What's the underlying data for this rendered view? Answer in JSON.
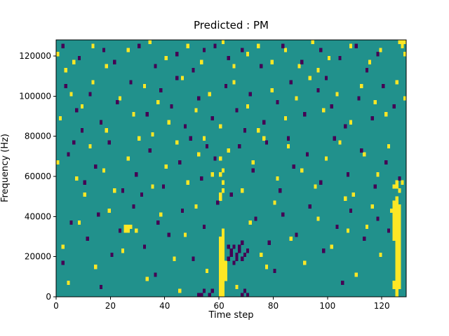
{
  "chart_data": {
    "type": "heatmap",
    "title": "Predicted : PM",
    "xlabel": "Time step",
    "ylabel": "Frequency (Hz)",
    "xlim": [
      0,
      129
    ],
    "ylim": [
      0,
      128000
    ],
    "xticks": [
      0,
      20,
      40,
      60,
      80,
      100,
      120
    ],
    "yticks": [
      0,
      20000,
      40000,
      60000,
      80000,
      100000,
      120000
    ],
    "grid": false,
    "legend": "none",
    "nx": 129,
    "ny": 64,
    "cell_freq_step_hz": 2000,
    "colors": {
      "background": "#21918c",
      "yellow": "#fde725",
      "dark": "#440154",
      "axis": "#000000",
      "figure_bg": "#ffffff"
    },
    "yellow_cells": [
      [
        60,
        0
      ],
      [
        60,
        1
      ],
      [
        60,
        2
      ],
      [
        60,
        3
      ],
      [
        60,
        4
      ],
      [
        60,
        5
      ],
      [
        60,
        6
      ],
      [
        60,
        7
      ],
      [
        60,
        8
      ],
      [
        60,
        9
      ],
      [
        60,
        10
      ],
      [
        60,
        11
      ],
      [
        60,
        12
      ],
      [
        60,
        13
      ],
      [
        60,
        14
      ],
      [
        61,
        0
      ],
      [
        61,
        1
      ],
      [
        61,
        2
      ],
      [
        61,
        3
      ],
      [
        61,
        4
      ],
      [
        61,
        5
      ],
      [
        61,
        6
      ],
      [
        61,
        7
      ],
      [
        61,
        8
      ],
      [
        61,
        9
      ],
      [
        61,
        10
      ],
      [
        61,
        11
      ],
      [
        61,
        12
      ],
      [
        61,
        13
      ],
      [
        61,
        14
      ],
      [
        61,
        15
      ],
      [
        61,
        16
      ],
      [
        62,
        4
      ],
      [
        62,
        5
      ],
      [
        62,
        6
      ],
      [
        62,
        7
      ],
      [
        62,
        8
      ],
      [
        60,
        24
      ],
      [
        60,
        25
      ],
      [
        61,
        26
      ],
      [
        61,
        28
      ],
      [
        60,
        30
      ],
      [
        61,
        31
      ],
      [
        60,
        34
      ],
      [
        124,
        2
      ],
      [
        124,
        3
      ],
      [
        124,
        14
      ],
      [
        124,
        15
      ],
      [
        124,
        16
      ],
      [
        124,
        17
      ],
      [
        124,
        18
      ],
      [
        124,
        19
      ],
      [
        124,
        20
      ],
      [
        124,
        21
      ],
      [
        124,
        22
      ],
      [
        124,
        23
      ],
      [
        124,
        27
      ],
      [
        125,
        0
      ],
      [
        125,
        1
      ],
      [
        125,
        2
      ],
      [
        125,
        3
      ],
      [
        125,
        4
      ],
      [
        125,
        5
      ],
      [
        125,
        6
      ],
      [
        125,
        7
      ],
      [
        125,
        8
      ],
      [
        125,
        9
      ],
      [
        125,
        10
      ],
      [
        125,
        11
      ],
      [
        125,
        12
      ],
      [
        125,
        13
      ],
      [
        125,
        14
      ],
      [
        125,
        15
      ],
      [
        125,
        16
      ],
      [
        125,
        17
      ],
      [
        125,
        18
      ],
      [
        125,
        19
      ],
      [
        125,
        20
      ],
      [
        125,
        21
      ],
      [
        125,
        22
      ],
      [
        125,
        23
      ],
      [
        125,
        24
      ],
      [
        125,
        27
      ],
      [
        125,
        28
      ],
      [
        126,
        2
      ],
      [
        126,
        3
      ],
      [
        126,
        4
      ],
      [
        126,
        5
      ],
      [
        126,
        6
      ],
      [
        126,
        7
      ],
      [
        126,
        8
      ],
      [
        126,
        9
      ],
      [
        126,
        10
      ],
      [
        126,
        11
      ],
      [
        126,
        12
      ],
      [
        126,
        13
      ],
      [
        126,
        14
      ],
      [
        126,
        15
      ],
      [
        126,
        16
      ],
      [
        126,
        17
      ],
      [
        126,
        18
      ],
      [
        126,
        19
      ],
      [
        126,
        20
      ],
      [
        126,
        21
      ],
      [
        126,
        22
      ],
      [
        126,
        26
      ],
      [
        25,
        16
      ],
      [
        26,
        16
      ],
      [
        26,
        17
      ],
      [
        27,
        17
      ],
      [
        25,
        17
      ],
      [
        0,
        60
      ],
      [
        3,
        56
      ],
      [
        6,
        58
      ],
      [
        13,
        62
      ],
      [
        18,
        57
      ],
      [
        26,
        61
      ],
      [
        34,
        63
      ],
      [
        40,
        59
      ],
      [
        48,
        62
      ],
      [
        53,
        58
      ],
      [
        61,
        63
      ],
      [
        65,
        57
      ],
      [
        70,
        60
      ],
      [
        74,
        62
      ],
      [
        79,
        58
      ],
      [
        84,
        61
      ],
      [
        89,
        57
      ],
      [
        94,
        63
      ],
      [
        96,
        56
      ],
      [
        100,
        59
      ],
      [
        108,
        62
      ],
      [
        115,
        58
      ],
      [
        119,
        61
      ],
      [
        126,
        63
      ],
      [
        127,
        63
      ],
      [
        128,
        63
      ],
      [
        127,
        62
      ],
      [
        128,
        60
      ],
      [
        1,
        44
      ],
      [
        5,
        50
      ],
      [
        9,
        47
      ],
      [
        13,
        53
      ],
      [
        18,
        41
      ],
      [
        23,
        49
      ],
      [
        28,
        45
      ],
      [
        32,
        52
      ],
      [
        35,
        40
      ],
      [
        37,
        48
      ],
      [
        41,
        43
      ],
      [
        46,
        54
      ],
      [
        51,
        46
      ],
      [
        56,
        50
      ],
      [
        60,
        42
      ],
      [
        65,
        53
      ],
      [
        70,
        47
      ],
      [
        74,
        41
      ],
      [
        79,
        51
      ],
      [
        84,
        44
      ],
      [
        88,
        49
      ],
      [
        93,
        54
      ],
      [
        98,
        46
      ],
      [
        103,
        50
      ],
      [
        108,
        43
      ],
      [
        112,
        52
      ],
      [
        117,
        48
      ],
      [
        121,
        45
      ],
      [
        125,
        53
      ],
      [
        128,
        49
      ],
      [
        0,
        33
      ],
      [
        7,
        29
      ],
      [
        10,
        25
      ],
      [
        12,
        37
      ],
      [
        17,
        31
      ],
      [
        21,
        26
      ],
      [
        26,
        34
      ],
      [
        30,
        39
      ],
      [
        35,
        27
      ],
      [
        40,
        32
      ],
      [
        44,
        38
      ],
      [
        48,
        28
      ],
      [
        52,
        35
      ],
      [
        54,
        39
      ],
      [
        57,
        30
      ],
      [
        63,
        36
      ],
      [
        68,
        26
      ],
      [
        72,
        33
      ],
      [
        76,
        39
      ],
      [
        81,
        29
      ],
      [
        85,
        37
      ],
      [
        90,
        31
      ],
      [
        95,
        27
      ],
      [
        99,
        34
      ],
      [
        104,
        38
      ],
      [
        109,
        25
      ],
      [
        113,
        35
      ],
      [
        118,
        30
      ],
      [
        122,
        37
      ],
      [
        127,
        28
      ],
      [
        2,
        12
      ],
      [
        4,
        3
      ],
      [
        8,
        18
      ],
      [
        14,
        7
      ],
      [
        19,
        21
      ],
      [
        24,
        11
      ],
      [
        29,
        16
      ],
      [
        33,
        4
      ],
      [
        38,
        20
      ],
      [
        43,
        9
      ],
      [
        45,
        1
      ],
      [
        47,
        15
      ],
      [
        51,
        22
      ],
      [
        55,
        6
      ],
      [
        66,
        2
      ],
      [
        71,
        18
      ],
      [
        75,
        10
      ],
      [
        77,
        7
      ],
      [
        80,
        23
      ],
      [
        86,
        14
      ],
      [
        91,
        8
      ],
      [
        96,
        19
      ],
      [
        101,
        12
      ],
      [
        106,
        24
      ],
      [
        107,
        16
      ],
      [
        110,
        5
      ],
      [
        114,
        17
      ],
      [
        116,
        22
      ],
      [
        119,
        10
      ],
      [
        123,
        21
      ]
    ],
    "dark_cells": [
      [
        2,
        62
      ],
      [
        8,
        59
      ],
      [
        17,
        61
      ],
      [
        21,
        58
      ],
      [
        30,
        62
      ],
      [
        36,
        57
      ],
      [
        44,
        60
      ],
      [
        50,
        56
      ],
      [
        54,
        61
      ],
      [
        58,
        62
      ],
      [
        63,
        59
      ],
      [
        68,
        61
      ],
      [
        75,
        57
      ],
      [
        83,
        62
      ],
      [
        90,
        58
      ],
      [
        97,
        61
      ],
      [
        104,
        59
      ],
      [
        110,
        62
      ],
      [
        114,
        56
      ],
      [
        118,
        60
      ],
      [
        3,
        52
      ],
      [
        7,
        46
      ],
      [
        9,
        41
      ],
      [
        12,
        50
      ],
      [
        16,
        43
      ],
      [
        22,
        48
      ],
      [
        27,
        53
      ],
      [
        33,
        45
      ],
      [
        38,
        51
      ],
      [
        42,
        47
      ],
      [
        44,
        54
      ],
      [
        47,
        42
      ],
      [
        52,
        49
      ],
      [
        57,
        44
      ],
      [
        62,
        52
      ],
      [
        66,
        46
      ],
      [
        69,
        41
      ],
      [
        71,
        50
      ],
      [
        76,
        43
      ],
      [
        81,
        48
      ],
      [
        86,
        53
      ],
      [
        91,
        45
      ],
      [
        96,
        51
      ],
      [
        99,
        54
      ],
      [
        101,
        47
      ],
      [
        106,
        42
      ],
      [
        111,
        49
      ],
      [
        116,
        44
      ],
      [
        120,
        52
      ],
      [
        124,
        47
      ],
      [
        4,
        35
      ],
      [
        6,
        38
      ],
      [
        10,
        28
      ],
      [
        14,
        32
      ],
      [
        19,
        38
      ],
      [
        24,
        26
      ],
      [
        29,
        30
      ],
      [
        31,
        25
      ],
      [
        34,
        36
      ],
      [
        39,
        27
      ],
      [
        45,
        33
      ],
      [
        49,
        39
      ],
      [
        53,
        29
      ],
      [
        55,
        37
      ],
      [
        58,
        34
      ],
      [
        64,
        25
      ],
      [
        67,
        37
      ],
      [
        72,
        31
      ],
      [
        77,
        38
      ],
      [
        82,
        26
      ],
      [
        85,
        39
      ],
      [
        87,
        32
      ],
      [
        92,
        35
      ],
      [
        97,
        28
      ],
      [
        102,
        39
      ],
      [
        107,
        30
      ],
      [
        112,
        36
      ],
      [
        117,
        27
      ],
      [
        121,
        33
      ],
      [
        126,
        29
      ],
      [
        63,
        9
      ],
      [
        63,
        12
      ],
      [
        64,
        10
      ],
      [
        64,
        11
      ],
      [
        65,
        8
      ],
      [
        65,
        12
      ],
      [
        66,
        9
      ],
      [
        66,
        10
      ],
      [
        67,
        11
      ],
      [
        67,
        12
      ],
      [
        68,
        9
      ],
      [
        68,
        13
      ],
      [
        69,
        10
      ],
      [
        70,
        11
      ],
      [
        2,
        8
      ],
      [
        5,
        18
      ],
      [
        11,
        14
      ],
      [
        15,
        20
      ],
      [
        16,
        2
      ],
      [
        20,
        10
      ],
      [
        23,
        16
      ],
      [
        28,
        22
      ],
      [
        32,
        12
      ],
      [
        36,
        5
      ],
      [
        37,
        18
      ],
      [
        41,
        15
      ],
      [
        46,
        21
      ],
      [
        50,
        9
      ],
      [
        54,
        17
      ],
      [
        57,
        1
      ],
      [
        59,
        23
      ],
      [
        73,
        19
      ],
      [
        78,
        13
      ],
      [
        80,
        6
      ],
      [
        83,
        20
      ],
      [
        88,
        15
      ],
      [
        93,
        22
      ],
      [
        98,
        11
      ],
      [
        103,
        17
      ],
      [
        105,
        3
      ],
      [
        108,
        21
      ],
      [
        113,
        14
      ],
      [
        118,
        19
      ],
      [
        122,
        16
      ],
      [
        52,
        0
      ],
      [
        53,
        0
      ],
      [
        54,
        1
      ],
      [
        56,
        0
      ],
      [
        68,
        0
      ],
      [
        69,
        1
      ],
      [
        70,
        0
      ]
    ]
  }
}
